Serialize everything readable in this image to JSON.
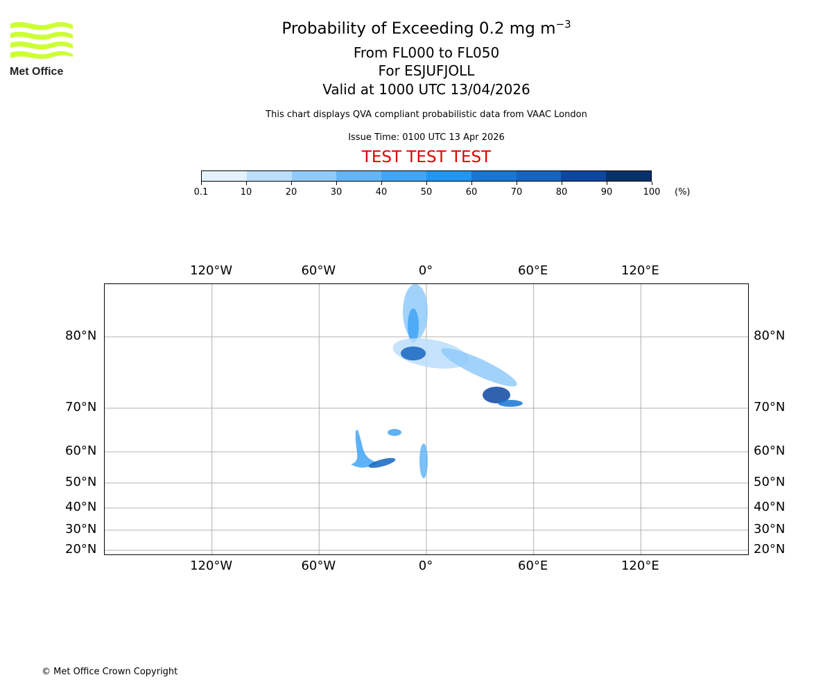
{
  "header": {
    "title_main": "Probability of Exceeding 0.2 mg m",
    "title_sup": "−3",
    "level_range": "From FL000 to FL050",
    "volcano": "For ESJUFJOLL",
    "valid_time": "Valid at 1000 UTC 13/04/2026",
    "description": "This chart displays QVA compliant probabilistic data from VAAC London",
    "issue_time": "Issue Time: 0100 UTC 13 Apr 2026",
    "test_banner": "TEST TEST TEST"
  },
  "logo": {
    "text": "Met Office",
    "color": "#ccff33"
  },
  "colorbar": {
    "ticks": [
      "0.1",
      "10",
      "20",
      "30",
      "40",
      "50",
      "60",
      "70",
      "80",
      "90",
      "100"
    ],
    "unit": "(%)",
    "colors": [
      "#e3f2fd",
      "#bbdefb",
      "#90caf9",
      "#64b5f6",
      "#42a5f5",
      "#2196f3",
      "#1976d2",
      "#1565c0",
      "#0d47a1",
      "#08306b"
    ]
  },
  "map": {
    "lon_labels": [
      {
        "lon": -120,
        "text": "120°W"
      },
      {
        "lon": -60,
        "text": "60°W"
      },
      {
        "lon": 0,
        "text": "0°"
      },
      {
        "lon": 60,
        "text": "60°E"
      },
      {
        "lon": 120,
        "text": "120°E"
      }
    ],
    "lat_labels": [
      {
        "lat": 80,
        "text": "80°N"
      },
      {
        "lat": 70,
        "text": "70°N"
      },
      {
        "lat": 60,
        "text": "60°N"
      },
      {
        "lat": 50,
        "text": "50°N"
      },
      {
        "lat": 40,
        "text": "40°N"
      },
      {
        "lat": 30,
        "text": "30°N"
      },
      {
        "lat": 20,
        "text": "20°N"
      }
    ]
  },
  "footer": {
    "copyright": "© Met Office Crown Copyright"
  }
}
